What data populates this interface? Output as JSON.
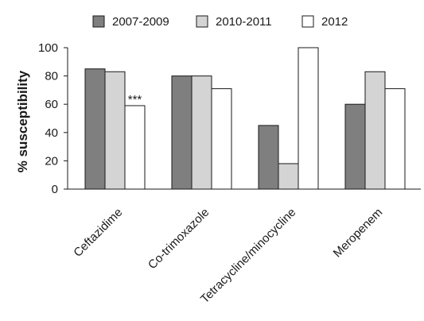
{
  "chart_data": {
    "type": "bar",
    "categories": [
      "Ceftazidime",
      "Co-trimoxazole",
      "Tetracycline/minocycline",
      "Meropenem"
    ],
    "series": [
      {
        "name": "2007-2009",
        "values": [
          85,
          80,
          45,
          60
        ],
        "color": "#7f7f7f"
      },
      {
        "name": "2010-2011",
        "values": [
          83,
          80,
          18,
          83
        ],
        "color": "#d4d4d4"
      },
      {
        "name": "2012",
        "values": [
          59,
          71,
          100,
          71
        ],
        "color": "#ffffff"
      }
    ],
    "title": "",
    "xlabel": "",
    "ylabel": "% susceptibility",
    "ylim": [
      0,
      100
    ],
    "yticks": [
      0,
      20,
      40,
      60,
      80,
      100
    ],
    "grid": false,
    "legend_position": "top",
    "annotations": [
      {
        "text": "***",
        "category": "Ceftazidime",
        "series": "2012"
      }
    ]
  }
}
